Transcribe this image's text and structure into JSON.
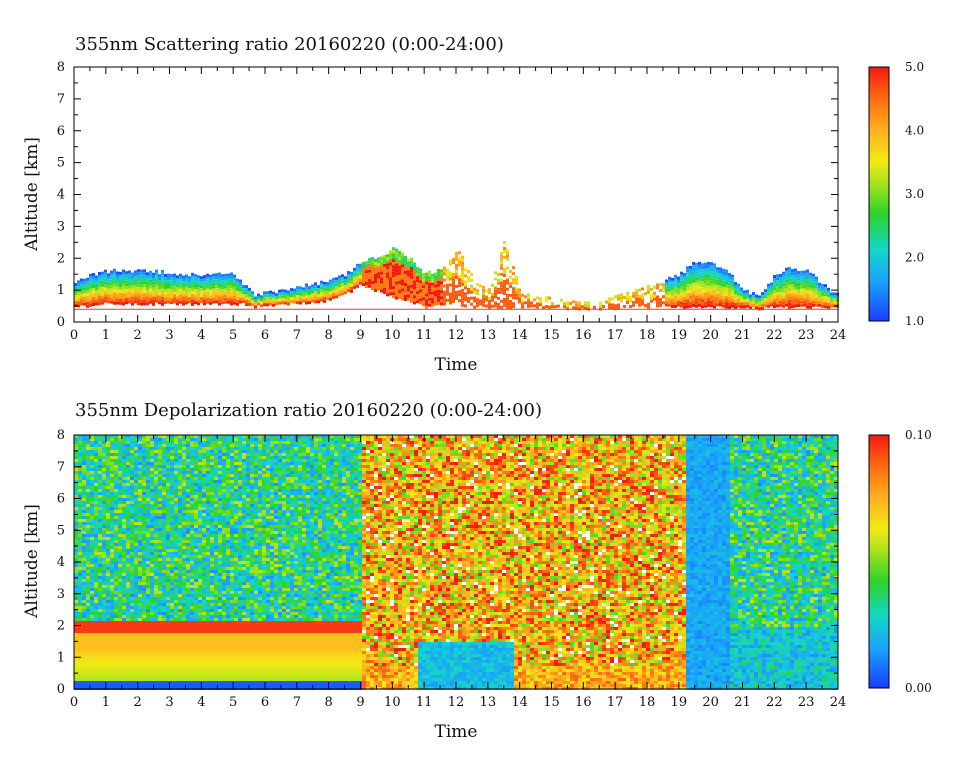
{
  "chart_data": [
    {
      "type": "heatmap",
      "title": "355nm Scattering ratio  20160220 (0:00-24:00)",
      "xlabel": "Time",
      "ylabel": "Altitude [km]",
      "xlim": [
        0,
        24
      ],
      "ylim": [
        0,
        8
      ],
      "xticks": [
        "0",
        "1",
        "2",
        "3",
        "4",
        "5",
        "6",
        "7",
        "8",
        "9",
        "10",
        "11",
        "12",
        "13",
        "14",
        "15",
        "16",
        "17",
        "18",
        "19",
        "20",
        "21",
        "22",
        "23",
        "24"
      ],
      "yticks": [
        "0",
        "1",
        "2",
        "3",
        "4",
        "5",
        "6",
        "7",
        "8"
      ],
      "colorbar": {
        "range": [
          1.0,
          5.0
        ],
        "ticks": [
          "5.0",
          "4.0",
          "3.0",
          "2.0",
          "1.0"
        ]
      },
      "ground_line_altitude_km": 0.4,
      "layer_profile": {
        "time_h": [
          0,
          0.5,
          1,
          2,
          3,
          4,
          5,
          5.3,
          5.6,
          6,
          7,
          8,
          8.5,
          9,
          9.5,
          10,
          10.5,
          11,
          11.5,
          12,
          12.5,
          13,
          13.5,
          14,
          15,
          16,
          17,
          18,
          19,
          19.5,
          20,
          20.5,
          21,
          21.5,
          22,
          22.5,
          23,
          23.5,
          24
        ],
        "top_km": [
          1.2,
          1.5,
          1.6,
          1.6,
          1.55,
          1.45,
          1.5,
          1.2,
          0.85,
          0.9,
          1.1,
          1.3,
          1.5,
          1.9,
          2.0,
          2.3,
          2.0,
          1.5,
          1.7,
          2.3,
          1.5,
          1.0,
          2.6,
          0.9,
          0.7,
          0.6,
          0.8,
          1.1,
          1.5,
          1.9,
          1.8,
          1.6,
          1.0,
          0.8,
          1.5,
          1.7,
          1.6,
          1.2,
          0.8
        ],
        "bottom_km": [
          0.5,
          0.55,
          0.6,
          0.6,
          0.6,
          0.6,
          0.6,
          0.6,
          0.5,
          0.55,
          0.6,
          0.7,
          0.9,
          1.2,
          1.0,
          0.8,
          0.7,
          0.5,
          0.6,
          0.6,
          0.5,
          0.5,
          0.5,
          0.5,
          0.45,
          0.45,
          0.45,
          0.5,
          0.5,
          0.5,
          0.5,
          0.5,
          0.5,
          0.45,
          0.5,
          0.5,
          0.5,
          0.5,
          0.5
        ]
      }
    },
    {
      "type": "heatmap",
      "title": "355nm Depolarization ratio  20160220 (0:00-24:00)",
      "xlabel": "Time",
      "ylabel": "Altitude [km]",
      "xlim": [
        0,
        24
      ],
      "ylim": [
        0,
        8
      ],
      "xticks": [
        "0",
        "1",
        "2",
        "3",
        "4",
        "5",
        "6",
        "7",
        "8",
        "9",
        "10",
        "11",
        "12",
        "13",
        "14",
        "15",
        "16",
        "17",
        "18",
        "19",
        "20",
        "21",
        "22",
        "23",
        "24"
      ],
      "yticks": [
        "0",
        "1",
        "2",
        "3",
        "4",
        "5",
        "6",
        "7",
        "8"
      ],
      "colorbar": {
        "range": [
          0.0,
          0.1
        ],
        "ticks": [
          "0.10",
          "0.00"
        ]
      },
      "regions": [
        {
          "t0": 0,
          "t1": 9,
          "z0": 0,
          "z1": 2.2,
          "description_level": 0.07
        },
        {
          "t0": 9,
          "t1": 19.2,
          "z0": 0.8,
          "z1": 8,
          "description_level": 0.095
        },
        {
          "t0": 10.7,
          "t1": 13.7,
          "z0": 0,
          "z1": 1.5,
          "description_level": 0.02
        },
        {
          "t0": 19.2,
          "t1": 20.5,
          "z0": 0,
          "z1": 8,
          "description_level": 0.015
        },
        {
          "t0": 0,
          "t1": 9,
          "z0": 2.2,
          "z1": 8,
          "description_level": 0.035
        }
      ]
    }
  ]
}
